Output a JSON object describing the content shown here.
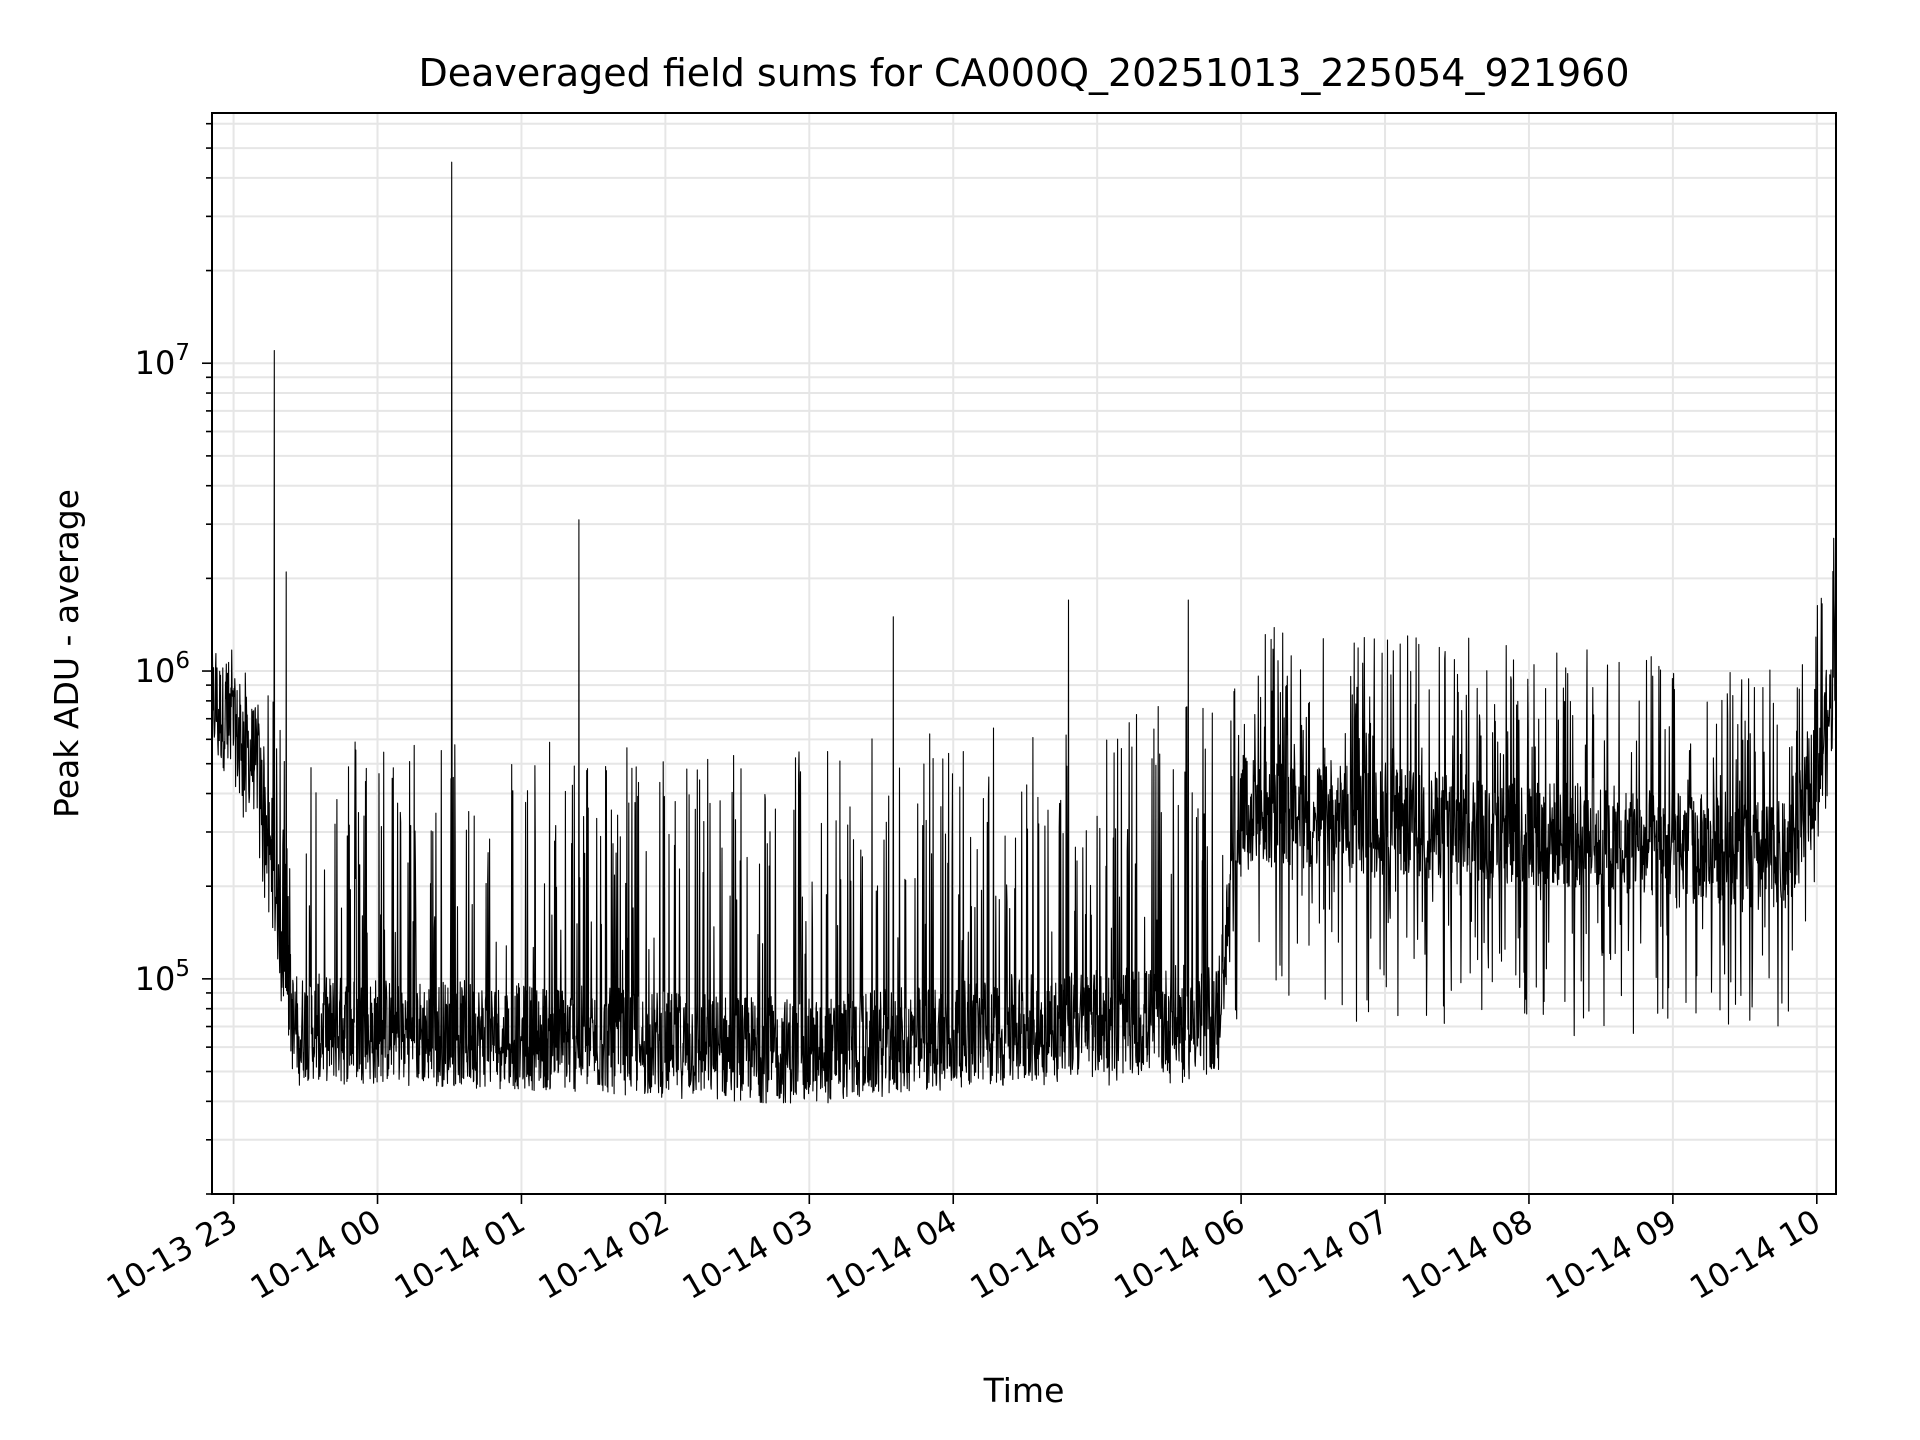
{
  "chart_data": {
    "type": "line",
    "title": "Deaveraged field sums for CA000Q_20251013_225054_921960",
    "xlabel": "Time",
    "ylabel": "Peak ADU - average",
    "x_ticks": [
      "10-13 23",
      "10-14 00",
      "10-14 01",
      "10-14 02",
      "10-14 03",
      "10-14 04",
      "10-14 05",
      "10-14 06",
      "10-14 07",
      "10-14 08",
      "10-14 09",
      "10-14 10"
    ],
    "y_ticks": [
      {
        "value": 100000,
        "base": "10",
        "exp": "5"
      },
      {
        "value": 1000000,
        "base": "10",
        "exp": "6"
      },
      {
        "value": 10000000,
        "base": "10",
        "exp": "7"
      }
    ],
    "x_range": [
      "2025-10-13 22:51",
      "2025-10-14 10:08"
    ],
    "ylim": [
      20000,
      65000000
    ],
    "yscale": "log",
    "grid": true,
    "colors": {
      "line": "#000000",
      "grid": "#e6e6e6",
      "axes": "#000000"
    },
    "series": [
      {
        "values_description": "dense noisy time series",
        "envelope": [
          {
            "t": "2025-10-13 22:51",
            "base": 800000,
            "high": 1500000,
            "low": 500000
          },
          {
            "t": "2025-10-13 23:10",
            "base": 500000,
            "high": 900000,
            "low": 250000
          },
          {
            "t": "2025-10-13 23:25",
            "base": 70000,
            "high": 700000,
            "low": 45000
          },
          {
            "t": "2025-10-14 01:00",
            "base": 65000,
            "high": 600000,
            "low": 45000
          },
          {
            "t": "2025-10-14 03:00",
            "base": 58000,
            "high": 600000,
            "low": 40000
          },
          {
            "t": "2025-10-14 04:30",
            "base": 70000,
            "high": 700000,
            "low": 45000
          },
          {
            "t": "2025-10-14 05:50",
            "base": 75000,
            "high": 800000,
            "low": 45000
          },
          {
            "t": "2025-10-14 06:00",
            "base": 350000,
            "high": 1400000,
            "low": 80000
          },
          {
            "t": "2025-10-14 08:00",
            "base": 300000,
            "high": 1300000,
            "low": 60000
          },
          {
            "t": "2025-10-14 09:50",
            "base": 250000,
            "high": 1000000,
            "low": 70000
          },
          {
            "t": "2025-10-14 10:08",
            "base": 900000,
            "high": 2500000,
            "low": 600000
          }
        ],
        "spikes": [
          {
            "t": "2025-10-13 23:17",
            "y": 11000000
          },
          {
            "t": "2025-10-13 23:22",
            "y": 2100000
          },
          {
            "t": "2025-10-14 00:31",
            "y": 45000000
          },
          {
            "t": "2025-10-14 01:24",
            "y": 3100000
          },
          {
            "t": "2025-10-14 03:35",
            "y": 1500000
          },
          {
            "t": "2025-10-14 04:48",
            "y": 1700000
          },
          {
            "t": "2025-10-14 05:38",
            "y": 1700000
          },
          {
            "t": "2025-10-14 10:07",
            "y": 2700000
          }
        ]
      }
    ]
  }
}
